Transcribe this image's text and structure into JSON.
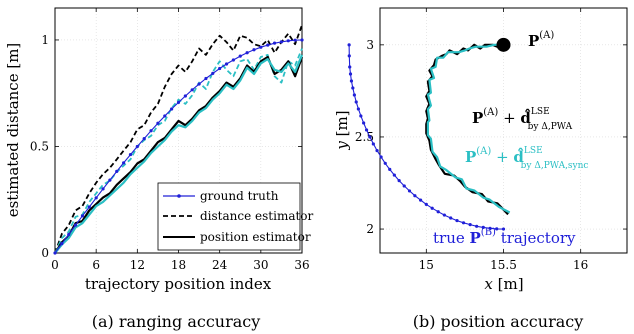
{
  "chart_data": [
    {
      "type": "line",
      "caption": "(a) ranging accuracy",
      "xlabel": "trajectory position index",
      "ylabel": "estimated distance [m]",
      "xlim": [
        0,
        36
      ],
      "ylim": [
        0,
        1.15
      ],
      "xticks": [
        0,
        6,
        12,
        18,
        24,
        30,
        36
      ],
      "yticks": [
        0,
        0.5,
        1
      ],
      "ytick_labels": [
        "0",
        "0.5",
        "1"
      ],
      "grid": true,
      "legend": "bottom-right",
      "series": [
        {
          "name": "ground truth",
          "color": "#2020d8",
          "style": "solid-markers",
          "x": [
            0,
            1,
            2,
            3,
            4,
            5,
            6,
            7,
            8,
            9,
            10,
            11,
            12,
            13,
            14,
            15,
            16,
            17,
            18,
            19,
            20,
            21,
            22,
            23,
            24,
            25,
            26,
            27,
            28,
            29,
            30,
            31,
            32,
            33,
            34,
            35,
            36
          ],
          "y": [
            0,
            0.044,
            0.087,
            0.131,
            0.174,
            0.216,
            0.259,
            0.301,
            0.342,
            0.383,
            0.423,
            0.462,
            0.5,
            0.537,
            0.574,
            0.609,
            0.643,
            0.676,
            0.707,
            0.737,
            0.766,
            0.793,
            0.819,
            0.843,
            0.866,
            0.887,
            0.906,
            0.924,
            0.94,
            0.954,
            0.966,
            0.976,
            0.985,
            0.991,
            0.996,
            0.999,
            1.0
          ]
        },
        {
          "name": "distance estimator",
          "color": "#000000",
          "style": "dashed",
          "x": [
            0,
            1,
            2,
            3,
            4,
            5,
            6,
            7,
            8,
            9,
            10,
            11,
            12,
            13,
            14,
            15,
            16,
            17,
            18,
            19,
            20,
            21,
            22,
            23,
            24,
            25,
            26,
            27,
            28,
            29,
            30,
            31,
            32,
            33,
            34,
            35,
            36
          ],
          "y": [
            0,
            0.09,
            0.13,
            0.2,
            0.22,
            0.28,
            0.33,
            0.37,
            0.4,
            0.44,
            0.48,
            0.52,
            0.58,
            0.6,
            0.66,
            0.7,
            0.78,
            0.84,
            0.88,
            0.85,
            0.9,
            0.96,
            0.93,
            0.98,
            1.02,
            0.99,
            0.95,
            1.02,
            1.01,
            0.98,
            0.97,
            1.0,
            0.94,
            0.99,
            1.03,
            0.98,
            1.07
          ]
        },
        {
          "name": "",
          "color": "#2bbfc4",
          "style": "dashed",
          "x": [
            0,
            1,
            2,
            3,
            4,
            5,
            6,
            7,
            8,
            9,
            10,
            11,
            12,
            13,
            14,
            15,
            16,
            17,
            18,
            19,
            20,
            21,
            22,
            23,
            24,
            25,
            26,
            27,
            28,
            29,
            30,
            31,
            32,
            33,
            34,
            35,
            36
          ],
          "y": [
            0,
            0.07,
            0.1,
            0.17,
            0.18,
            0.24,
            0.28,
            0.32,
            0.34,
            0.38,
            0.41,
            0.44,
            0.5,
            0.53,
            0.55,
            0.6,
            0.62,
            0.68,
            0.72,
            0.7,
            0.74,
            0.8,
            0.77,
            0.85,
            0.9,
            0.86,
            0.83,
            0.9,
            0.91,
            0.86,
            0.92,
            0.93,
            0.83,
            0.8,
            0.9,
            0.88,
            0.96
          ]
        },
        {
          "name": "position estimator",
          "color": "#000000",
          "style": "solid",
          "x": [
            0,
            1,
            2,
            3,
            4,
            5,
            6,
            7,
            8,
            9,
            10,
            11,
            12,
            13,
            14,
            15,
            16,
            17,
            18,
            19,
            20,
            21,
            22,
            23,
            24,
            25,
            26,
            27,
            28,
            29,
            30,
            31,
            32,
            33,
            34,
            35,
            36
          ],
          "y": [
            0,
            0.05,
            0.08,
            0.14,
            0.15,
            0.2,
            0.23,
            0.26,
            0.28,
            0.32,
            0.35,
            0.38,
            0.42,
            0.44,
            0.48,
            0.52,
            0.54,
            0.58,
            0.62,
            0.6,
            0.63,
            0.67,
            0.69,
            0.73,
            0.76,
            0.8,
            0.78,
            0.82,
            0.88,
            0.85,
            0.9,
            0.92,
            0.84,
            0.86,
            0.9,
            0.83,
            0.92
          ]
        },
        {
          "name": "",
          "color": "#2bbfc4",
          "style": "solid",
          "x": [
            0,
            1,
            2,
            3,
            4,
            5,
            6,
            7,
            8,
            9,
            10,
            11,
            12,
            13,
            14,
            15,
            16,
            17,
            18,
            19,
            20,
            21,
            22,
            23,
            24,
            25,
            26,
            27,
            28,
            29,
            30,
            31,
            32,
            33,
            34,
            35,
            36
          ],
          "y": [
            0,
            0.04,
            0.07,
            0.12,
            0.14,
            0.18,
            0.22,
            0.24,
            0.27,
            0.3,
            0.33,
            0.37,
            0.4,
            0.43,
            0.47,
            0.5,
            0.53,
            0.57,
            0.6,
            0.59,
            0.62,
            0.66,
            0.68,
            0.72,
            0.75,
            0.79,
            0.77,
            0.81,
            0.87,
            0.84,
            0.89,
            0.91,
            0.86,
            0.85,
            0.89,
            0.85,
            0.93
          ]
        }
      ]
    },
    {
      "type": "line",
      "caption": "(b) position accuracy",
      "xlabel": "x [m]",
      "ylabel": "y [m]",
      "xlim": [
        14.7,
        16.3
      ],
      "ylim": [
        1.87,
        3.2
      ],
      "xticks": [
        15,
        15.5,
        16
      ],
      "xtick_labels": [
        "15",
        "15.5",
        "16"
      ],
      "yticks": [
        2,
        2.5,
        3
      ],
      "ytick_labels": [
        "2",
        "2.5",
        "3"
      ],
      "grid": true,
      "annotations": {
        "point_a": "P(A)",
        "label_black": "P(A) + d̂ LSE by Δ,PWA",
        "label_teal": "P(A) + d̂ LSE by Δ,PWA,sync",
        "label_true": "true P(B) trajectory"
      },
      "anchor_point": {
        "x": 15.5,
        "y": 3.0
      },
      "series": [
        {
          "name": "true P(B) trajectory",
          "color": "#2020d8",
          "style": "solid-markers",
          "x": [
            15.5,
            15.456,
            15.413,
            15.369,
            15.326,
            15.284,
            15.241,
            15.199,
            15.158,
            15.117,
            15.077,
            15.038,
            15.0,
            14.963,
            14.926,
            14.891,
            14.857,
            14.824,
            14.793,
            14.763,
            14.734,
            14.707,
            14.681,
            14.657,
            14.634,
            14.613,
            14.594,
            14.576,
            14.56,
            14.546,
            14.534,
            14.524,
            14.515,
            14.509,
            14.504,
            14.501,
            14.5
          ],
          "y": [
            2.0,
            2.001,
            2.004,
            2.009,
            2.015,
            2.024,
            2.034,
            2.046,
            2.06,
            2.076,
            2.094,
            2.113,
            2.134,
            2.157,
            2.181,
            2.207,
            2.234,
            2.263,
            2.293,
            2.324,
            2.357,
            2.391,
            2.426,
            2.462,
            2.5,
            2.538,
            2.576,
            2.614,
            2.652,
            2.69,
            2.728,
            2.766,
            2.804,
            2.842,
            2.88,
            2.94,
            3.0
          ]
        },
        {
          "name": "P(A) + d̂ LSE by Δ,PWA",
          "color": "#000000",
          "style": "solid",
          "x": [
            15.53,
            15.46,
            15.4,
            15.36,
            15.3,
            15.25,
            15.22,
            15.18,
            15.12,
            15.08,
            15.06,
            15.03,
            15.02,
            15.0,
            15.0,
            15.01,
            15.0,
            15.02,
            15.0,
            15.02,
            15.01,
            15.04,
            15.02,
            15.05,
            15.06,
            15.1,
            15.13,
            15.15,
            15.2,
            15.24,
            15.27,
            15.31,
            15.35,
            15.38,
            15.43,
            15.46,
            15.5
          ],
          "y": [
            2.08,
            2.14,
            2.15,
            2.19,
            2.2,
            2.23,
            2.26,
            2.29,
            2.3,
            2.35,
            2.38,
            2.43,
            2.48,
            2.52,
            2.57,
            2.6,
            2.64,
            2.68,
            2.72,
            2.75,
            2.8,
            2.83,
            2.86,
            2.89,
            2.92,
            2.94,
            2.95,
            2.97,
            2.95,
            2.98,
            2.97,
            3.0,
            2.98,
            3.0,
            3.0,
            2.99,
            3.0
          ]
        },
        {
          "name": "P(A) + d̂ LSE by Δ,PWA,sync",
          "color": "#2bbfc4",
          "style": "solid",
          "x": [
            15.54,
            15.47,
            15.41,
            15.37,
            15.31,
            15.26,
            15.23,
            15.19,
            15.13,
            15.09,
            15.07,
            15.04,
            15.03,
            15.01,
            15.01,
            15.02,
            15.01,
            15.03,
            15.01,
            15.03,
            15.02,
            15.05,
            15.03,
            15.06,
            15.07,
            15.11,
            15.14,
            15.16,
            15.21,
            15.25,
            15.28,
            15.32,
            15.36,
            15.39,
            15.44,
            15.47,
            15.5
          ],
          "y": [
            2.09,
            2.12,
            2.16,
            2.17,
            2.21,
            2.22,
            2.27,
            2.28,
            2.32,
            2.34,
            2.39,
            2.42,
            2.49,
            2.51,
            2.58,
            2.59,
            2.65,
            2.67,
            2.73,
            2.74,
            2.81,
            2.82,
            2.87,
            2.88,
            2.93,
            2.93,
            2.96,
            2.96,
            2.96,
            2.97,
            2.98,
            2.99,
            2.99,
            2.99,
            3.0,
            3.0,
            3.0
          ]
        }
      ]
    }
  ]
}
